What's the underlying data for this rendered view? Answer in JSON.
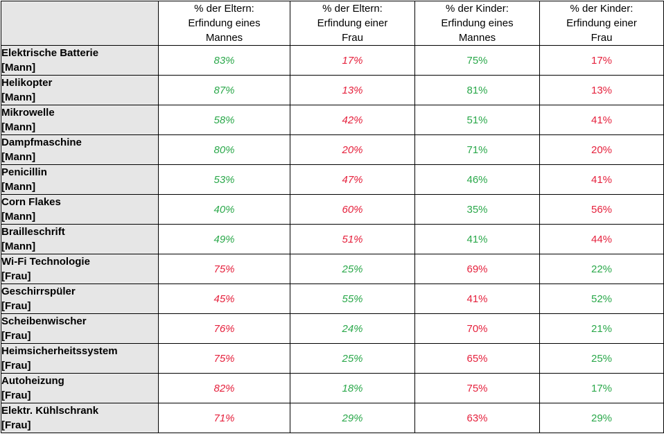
{
  "colors": {
    "green": "#2aa84a",
    "red": "#e5203c",
    "header_bg": "#e6e6e6"
  },
  "table": {
    "headers": [
      "",
      [
        "% der Eltern:",
        "Erfindung eines",
        "Mannes"
      ],
      [
        "% der Eltern:",
        "Erfindung einer",
        "Frau"
      ],
      [
        "% der Kinder:",
        "Erfindung eines",
        "Mannes"
      ],
      [
        "% der Kinder:",
        "Erfindung einer",
        "Frau"
      ]
    ],
    "rows": [
      {
        "invention": "Elektrische Batterie",
        "inventor": "[Mann]",
        "values": [
          "83%",
          "17%",
          "75%",
          "17%"
        ],
        "colors": [
          "green",
          "red",
          "green",
          "red"
        ]
      },
      {
        "invention": "Helikopter",
        "inventor": "[Mann]",
        "values": [
          "87%",
          "13%",
          "81%",
          "13%"
        ],
        "colors": [
          "green",
          "red",
          "green",
          "red"
        ]
      },
      {
        "invention": "Mikrowelle",
        "inventor": "[Mann]",
        "values": [
          "58%",
          "42%",
          "51%",
          "41%"
        ],
        "colors": [
          "green",
          "red",
          "green",
          "red"
        ]
      },
      {
        "invention": "Dampfmaschine",
        "inventor": "[Mann]",
        "values": [
          "80%",
          "20%",
          "71%",
          "20%"
        ],
        "colors": [
          "green",
          "red",
          "green",
          "red"
        ]
      },
      {
        "invention": "Penicillin",
        "inventor": "[Mann]",
        "values": [
          "53%",
          "47%",
          "46%",
          "41%"
        ],
        "colors": [
          "green",
          "red",
          "green",
          "red"
        ]
      },
      {
        "invention": "Corn Flakes",
        "inventor": "[Mann]",
        "values": [
          "40%",
          "60%",
          "35%",
          "56%"
        ],
        "colors": [
          "green",
          "red",
          "green",
          "red"
        ]
      },
      {
        "invention": "Brailleschrift",
        "inventor": "[Mann]",
        "values": [
          "49%",
          "51%",
          "41%",
          "44%"
        ],
        "colors": [
          "green",
          "red",
          "green",
          "red"
        ]
      },
      {
        "invention": "Wi-Fi Technologie",
        "inventor": "[Frau]",
        "values": [
          "75%",
          "25%",
          "69%",
          "22%"
        ],
        "colors": [
          "red",
          "green",
          "red",
          "green"
        ]
      },
      {
        "invention": "Geschirrspüler",
        "inventor": "[Frau]",
        "values": [
          "45%",
          "55%",
          "41%",
          "52%"
        ],
        "colors": [
          "red",
          "green",
          "red",
          "green"
        ]
      },
      {
        "invention": "Scheibenwischer",
        "inventor": "[Frau]",
        "values": [
          "76%",
          "24%",
          "70%",
          "21%"
        ],
        "colors": [
          "red",
          "green",
          "red",
          "green"
        ]
      },
      {
        "invention": "Heimsicherheitssystem",
        "inventor": "[Frau]",
        "values": [
          "75%",
          "25%",
          "65%",
          "25%"
        ],
        "colors": [
          "red",
          "green",
          "red",
          "green"
        ]
      },
      {
        "invention": "Autoheizung",
        "inventor": "[Frau]",
        "values": [
          "82%",
          "18%",
          "75%",
          "17%"
        ],
        "colors": [
          "red",
          "green",
          "red",
          "green"
        ]
      },
      {
        "invention": "Elektr. Kühlschrank",
        "inventor": "[Frau]",
        "values": [
          "71%",
          "29%",
          "63%",
          "29%"
        ],
        "colors": [
          "red",
          "green",
          "red",
          "green"
        ]
      }
    ]
  }
}
